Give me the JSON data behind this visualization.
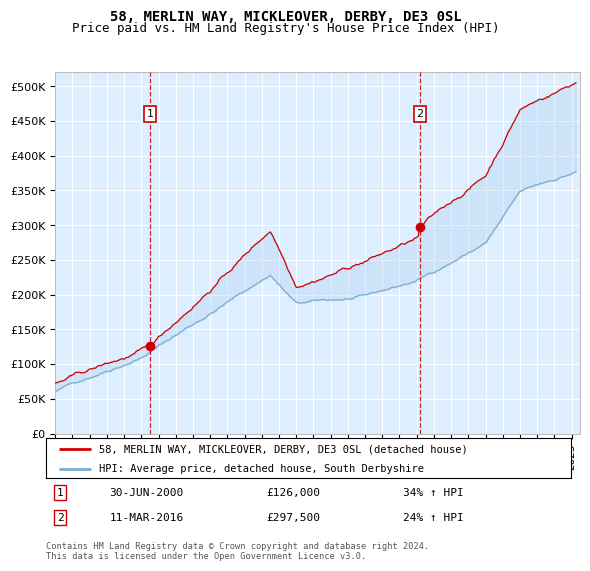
{
  "title": "58, MERLIN WAY, MICKLEOVER, DERBY, DE3 0SL",
  "subtitle": "Price paid vs. HM Land Registry's House Price Index (HPI)",
  "ylabel_ticks": [
    "£0",
    "£50K",
    "£100K",
    "£150K",
    "£200K",
    "£250K",
    "£300K",
    "£350K",
    "£400K",
    "£450K",
    "£500K"
  ],
  "ytick_vals": [
    0,
    50000,
    100000,
    150000,
    200000,
    250000,
    300000,
    350000,
    400000,
    450000,
    500000
  ],
  "ylim": [
    0,
    520000
  ],
  "xlim_start": 1995.0,
  "xlim_end": 2025.5,
  "red_line_color": "#cc0000",
  "blue_line_color": "#7aadcf",
  "fill_color": "#cce0f0",
  "background_color": "#ddeeff",
  "grid_color": "#ffffff",
  "marker1_x": 2000.5,
  "marker1_y": 126000,
  "marker2_x": 2016.2,
  "marker2_y": 297500,
  "marker1_label": "1",
  "marker2_label": "2",
  "sale1_date": "30-JUN-2000",
  "sale1_price": "£126,000",
  "sale1_hpi": "34% ↑ HPI",
  "sale2_date": "11-MAR-2016",
  "sale2_price": "£297,500",
  "sale2_hpi": "24% ↑ HPI",
  "legend1": "58, MERLIN WAY, MICKLEOVER, DERBY, DE3 0SL (detached house)",
  "legend2": "HPI: Average price, detached house, South Derbyshire",
  "footnote": "Contains HM Land Registry data © Crown copyright and database right 2024.\nThis data is licensed under the Open Government Licence v3.0.",
  "title_fontsize": 10,
  "subtitle_fontsize": 9
}
